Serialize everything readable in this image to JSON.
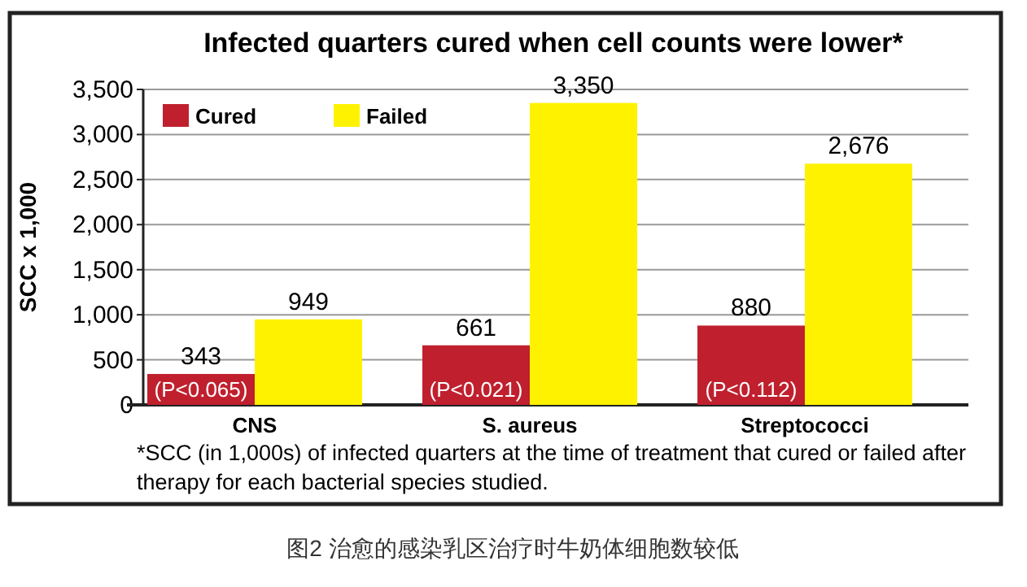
{
  "chart_data": {
    "type": "bar",
    "title": "Infected quarters cured when cell counts were lower*",
    "ylabel": "SCC x 1,000",
    "categories": [
      "CNS",
      "S. aureus",
      "Streptococci"
    ],
    "series": [
      {
        "name": "Cured",
        "color": "#c0202e",
        "values": [
          343,
          661,
          880
        ],
        "value_labels": [
          "343",
          "661",
          "880"
        ]
      },
      {
        "name": "Failed",
        "color": "#fff200",
        "values": [
          949,
          3350,
          2676
        ],
        "value_labels": [
          "949",
          "3,350",
          "2,676"
        ]
      }
    ],
    "ylim": [
      0,
      3500
    ],
    "yticks": [
      {
        "value": 0,
        "label": "0"
      },
      {
        "value": 500,
        "label": "500"
      },
      {
        "value": 1000,
        "label": "1,000"
      },
      {
        "value": 1500,
        "label": "1,500"
      },
      {
        "value": 2000,
        "label": "2,000"
      },
      {
        "value": 2500,
        "label": "2,500"
      },
      {
        "value": 3000,
        "label": "3,000"
      },
      {
        "value": 3500,
        "label": "3,500"
      }
    ],
    "grid": "y",
    "legend": "top left",
    "annotations": [
      {
        "text": "(P<0.065)",
        "x": "CNS",
        "y": 0
      },
      {
        "text": "(P<0.021)",
        "x": "S. aureus",
        "y": 0
      },
      {
        "text": "(P<0.112)",
        "x": "Streptococci",
        "y": 0
      },
      "*SCC (in 1,000s) of infected quarters at the time of treatment that cured or failed after therapy for each bacterial species studied.",
      "图2 治愈的感染乳区治疗时牛奶体细胞数较低"
    ]
  }
}
